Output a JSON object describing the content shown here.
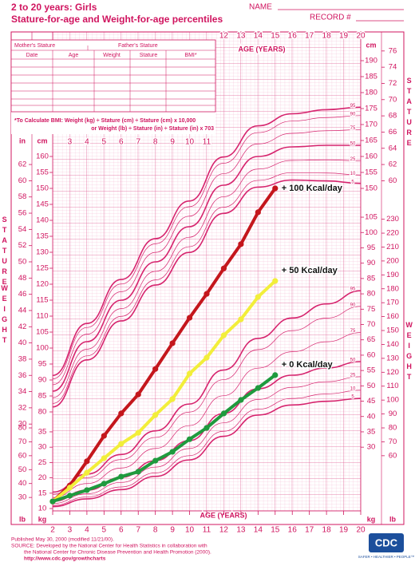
{
  "header": {
    "title": "2 to 20 years: Girls",
    "subtitle": "Stature-for-age and Weight-for-age percentiles",
    "name_label": "NAME",
    "record_label": "RECORD #"
  },
  "table": {
    "top_headers": [
      "Mother's Stature",
      "Father's Stature"
    ],
    "columns": [
      "Date",
      "Age",
      "Weight",
      "Stature",
      "BMI*"
    ]
  },
  "bmi_note": [
    "*To Calculate BMI: Weight (kg) ÷ Stature (cm) ÷ Stature (cm) x 10,000",
    "or Weight (lb) ÷ Stature (in) ÷ Stature (in) x 703"
  ],
  "chart_data": {
    "type": "line",
    "x_label": "AGE (YEARS)",
    "stature_label": "STATURE",
    "weight_label": "WEIGHT",
    "units": {
      "cm": "cm",
      "in": "in",
      "kg": "kg",
      "lb": "lb"
    },
    "xlim": [
      2,
      20
    ],
    "xticks": [
      2,
      3,
      4,
      5,
      6,
      7,
      8,
      9,
      10,
      11,
      12,
      13,
      14,
      15,
      16,
      17,
      18,
      19,
      20
    ],
    "xticks_top": [
      12,
      13,
      14,
      15,
      16,
      17,
      18,
      19,
      20
    ],
    "xticks_mid": [
      3,
      4,
      5,
      6,
      7,
      8,
      9,
      10,
      11
    ],
    "stature_ylim": [
      80,
      190
    ],
    "stature_cm_left_ticks": [
      80,
      85,
      90,
      95,
      100,
      105,
      110,
      115,
      120,
      125,
      130,
      135,
      140,
      145,
      150,
      155,
      160
    ],
    "stature_in_left_ticks": [
      30,
      32,
      34,
      36,
      38,
      40,
      42,
      44,
      46,
      48,
      50,
      52,
      54,
      56,
      58,
      60,
      62
    ],
    "stature_cm_right_ticks": [
      150,
      155,
      160,
      165,
      170,
      175,
      180,
      185,
      190
    ],
    "stature_in_right_ticks": [
      60,
      62,
      64,
      66,
      68,
      70,
      72,
      74,
      76
    ],
    "weight_ylim": [
      10,
      130
    ],
    "weight_kg_right_ticks": [
      30,
      35,
      40,
      45,
      50,
      55,
      60,
      65,
      70,
      75,
      80,
      85,
      90,
      95,
      100,
      105
    ],
    "weight_lb_right_ticks": [
      60,
      70,
      80,
      90,
      100,
      110,
      120,
      130,
      140,
      150,
      160,
      170,
      180,
      190,
      200,
      210,
      220,
      230
    ],
    "weight_kg_left_ticks": [
      10,
      15,
      20,
      25,
      30,
      35
    ],
    "weight_lb_left_ticks": [
      30,
      40,
      50,
      60,
      70,
      80
    ],
    "percentiles": [
      5,
      10,
      25,
      50,
      75,
      90,
      95
    ],
    "x": [
      2,
      3,
      4,
      5,
      6,
      7,
      8,
      9,
      10,
      11,
      12,
      13,
      14,
      15
    ],
    "series": [
      {
        "name": "+ 100 Kcal/day",
        "color": "#c4161c",
        "values": [
          12.3,
          17.5,
          25.4,
          33.7,
          41.0,
          47.2,
          55.5,
          63.9,
          72.2,
          80.0,
          88.3,
          96.2,
          106.6,
          114.4
        ]
      },
      {
        "name": "+ 50 Kcal/day",
        "color": "#f2ee3a",
        "values": [
          12.3,
          16.8,
          21.7,
          26.4,
          31.1,
          34.7,
          40.5,
          45.7,
          54.0,
          59.2,
          66.5,
          71.7,
          79.0,
          84.2
        ]
      },
      {
        "name": "+ 0 Kcal/day",
        "color": "#1f9a3e",
        "values": [
          12.3,
          14.2,
          16.0,
          18.1,
          20.4,
          22.0,
          25.6,
          28.5,
          32.6,
          36.3,
          41.0,
          45.4,
          49.3,
          53.5
        ]
      }
    ]
  },
  "footer": {
    "lines": [
      "Published May 30, 2000 (modified 11/21/00).",
      "SOURCE: Developed by the National Center for Health Statistics in collaboration with",
      "the National Center for Chronic Disease Prevention and Health Promotion (2000).",
      "http://www.cdc.gov/growthcharts"
    ],
    "logo": "CDC",
    "tagline": "SAFER • HEALTHIER • PEOPLE™"
  }
}
